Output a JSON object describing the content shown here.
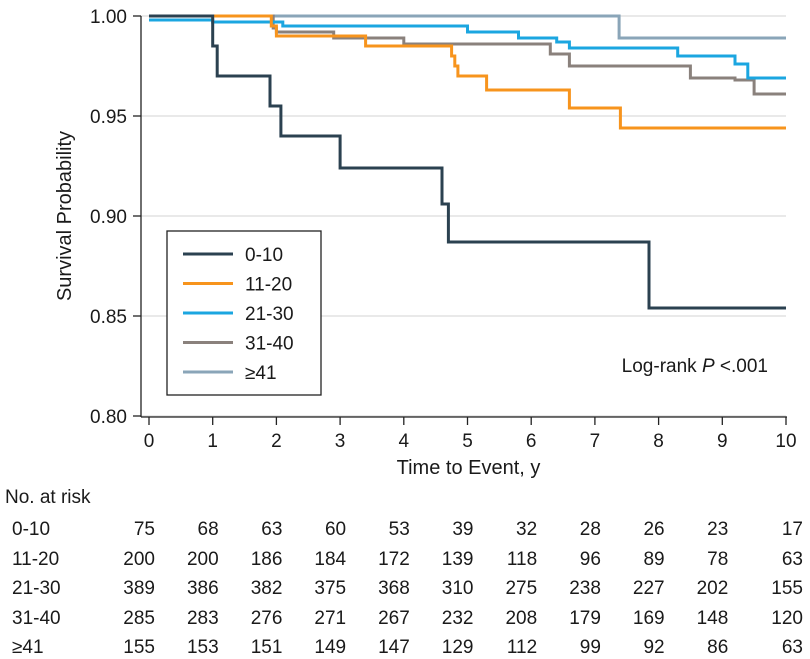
{
  "chart_data": {
    "type": "line",
    "step": true,
    "xlabel": "Time to Event, y",
    "ylabel": "Survival Probability",
    "xlim": [
      0,
      10
    ],
    "ylim": [
      0.8,
      1.0
    ],
    "xticks": [
      "0",
      "1",
      "2",
      "3",
      "4",
      "5",
      "6",
      "7",
      "8",
      "9",
      "10"
    ],
    "yticks": [
      "0.80",
      "0.85",
      "0.90",
      "0.95",
      "1.00"
    ],
    "grid": "horizontal",
    "legend_position": "lower-left",
    "annotation": {
      "prefix": "Log-rank ",
      "italic": "P",
      "suffix": " <.001"
    },
    "series": [
      {
        "name": "0-10",
        "color": "#2b4150",
        "points": [
          [
            0,
            1.0
          ],
          [
            1.0,
            1.0
          ],
          [
            1.0,
            0.985
          ],
          [
            1.07,
            0.985
          ],
          [
            1.07,
            0.97
          ],
          [
            1.9,
            0.97
          ],
          [
            1.9,
            0.955
          ],
          [
            2.07,
            0.955
          ],
          [
            2.07,
            0.94
          ],
          [
            3.0,
            0.94
          ],
          [
            3.0,
            0.924
          ],
          [
            4.6,
            0.924
          ],
          [
            4.6,
            0.906
          ],
          [
            4.7,
            0.906
          ],
          [
            4.7,
            0.887
          ],
          [
            7.85,
            0.887
          ],
          [
            7.85,
            0.854
          ],
          [
            10,
            0.854
          ]
        ]
      },
      {
        "name": "11-20",
        "color": "#f7941d",
        "points": [
          [
            0,
            1.0
          ],
          [
            1.92,
            1.0
          ],
          [
            1.92,
            0.995
          ],
          [
            2.0,
            0.995
          ],
          [
            2.0,
            0.99
          ],
          [
            3.4,
            0.99
          ],
          [
            3.4,
            0.985
          ],
          [
            4.75,
            0.985
          ],
          [
            4.75,
            0.98
          ],
          [
            4.8,
            0.98
          ],
          [
            4.8,
            0.975
          ],
          [
            4.85,
            0.975
          ],
          [
            4.85,
            0.97
          ],
          [
            5.3,
            0.97
          ],
          [
            5.3,
            0.963
          ],
          [
            6.6,
            0.963
          ],
          [
            6.6,
            0.954
          ],
          [
            7.4,
            0.954
          ],
          [
            7.4,
            0.944
          ],
          [
            10,
            0.944
          ]
        ]
      },
      {
        "name": "21-30",
        "color": "#1ba6e0",
        "points": [
          [
            0,
            0.998
          ],
          [
            1.0,
            0.998
          ],
          [
            1.0,
            0.997
          ],
          [
            2.1,
            0.997
          ],
          [
            2.1,
            0.995
          ],
          [
            5.0,
            0.995
          ],
          [
            5.0,
            0.992
          ],
          [
            5.8,
            0.992
          ],
          [
            5.8,
            0.989
          ],
          [
            6.4,
            0.989
          ],
          [
            6.4,
            0.987
          ],
          [
            6.6,
            0.987
          ],
          [
            6.6,
            0.984
          ],
          [
            8.3,
            0.984
          ],
          [
            8.3,
            0.98
          ],
          [
            9.2,
            0.98
          ],
          [
            9.2,
            0.976
          ],
          [
            9.4,
            0.976
          ],
          [
            9.4,
            0.969
          ],
          [
            10,
            0.969
          ]
        ]
      },
      {
        "name": "31-40",
        "color": "#8a817c",
        "points": [
          [
            0,
            1.0
          ],
          [
            1.95,
            1.0
          ],
          [
            1.95,
            0.994
          ],
          [
            2.0,
            0.994
          ],
          [
            2.0,
            0.992
          ],
          [
            2.9,
            0.992
          ],
          [
            2.9,
            0.989
          ],
          [
            4.0,
            0.989
          ],
          [
            4.0,
            0.986
          ],
          [
            6.3,
            0.986
          ],
          [
            6.3,
            0.981
          ],
          [
            6.6,
            0.981
          ],
          [
            6.6,
            0.975
          ],
          [
            8.5,
            0.975
          ],
          [
            8.5,
            0.969
          ],
          [
            9.2,
            0.969
          ],
          [
            9.2,
            0.968
          ],
          [
            9.5,
            0.968
          ],
          [
            9.5,
            0.961
          ],
          [
            10,
            0.961
          ]
        ]
      },
      {
        "name": "≥41",
        "color": "#8aa5b8",
        "points": [
          [
            0,
            1.0
          ],
          [
            7.38,
            1.0
          ],
          [
            7.38,
            0.989
          ],
          [
            10,
            0.989
          ]
        ]
      }
    ]
  },
  "risk_table": {
    "title": "No. at risk",
    "rows": [
      {
        "label": "0-10",
        "values": [
          "75",
          "68",
          "63",
          "60",
          "53",
          "39",
          "32",
          "28",
          "26",
          "23",
          "17"
        ]
      },
      {
        "label": "11-20",
        "values": [
          "200",
          "200",
          "186",
          "184",
          "172",
          "139",
          "118",
          "96",
          "89",
          "78",
          "63"
        ]
      },
      {
        "label": "21-30",
        "values": [
          "389",
          "386",
          "382",
          "375",
          "368",
          "310",
          "275",
          "238",
          "227",
          "202",
          "155"
        ]
      },
      {
        "label": "31-40",
        "values": [
          "285",
          "283",
          "276",
          "271",
          "267",
          "232",
          "208",
          "179",
          "169",
          "148",
          "120"
        ]
      },
      {
        "label": "≥41",
        "values": [
          "155",
          "153",
          "151",
          "149",
          "147",
          "129",
          "112",
          "99",
          "92",
          "86",
          "63"
        ]
      }
    ]
  }
}
